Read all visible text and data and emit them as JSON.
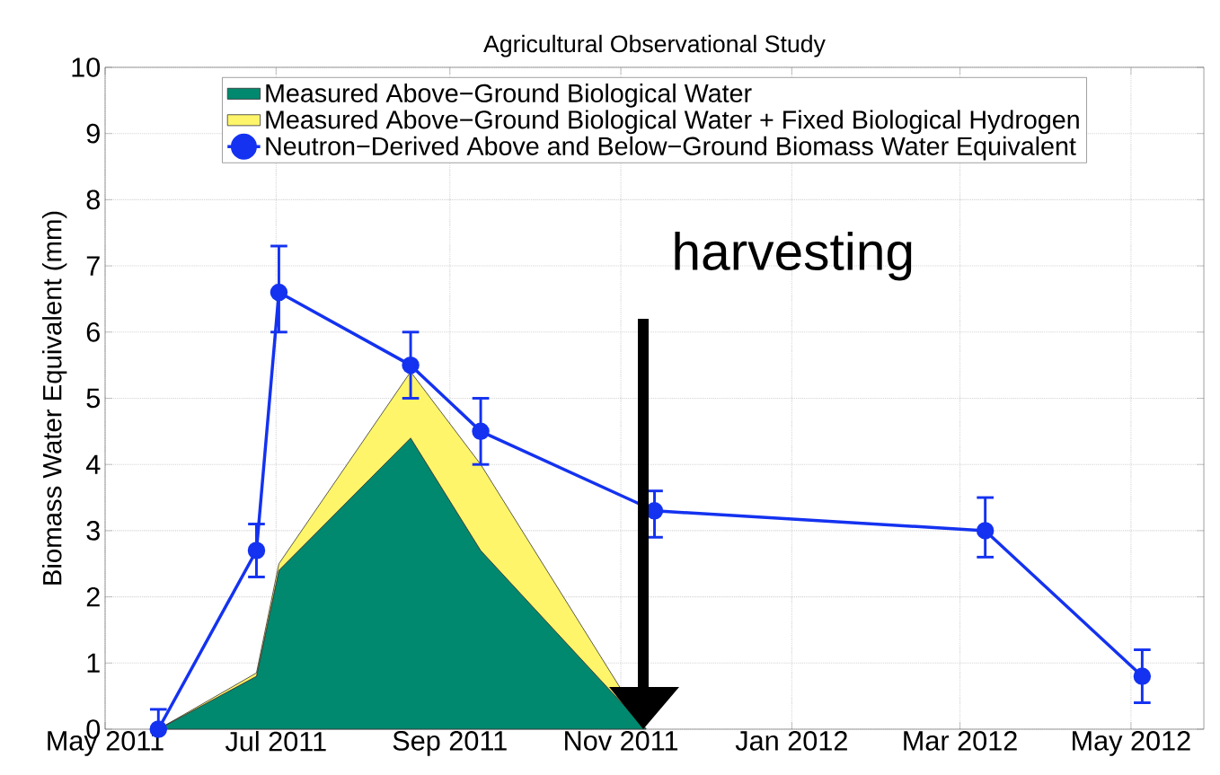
{
  "chart_data": {
    "type": "line",
    "title": "Agricultural Observational Study",
    "ylabel": "Biomass Water Equivalent (mm)",
    "xlim": [
      "2011-05-01",
      "2012-05-27"
    ],
    "xticks": [
      {
        "value": "2011-05-01",
        "label": "May 2011"
      },
      {
        "value": "2011-07-01",
        "label": "Jul 2011"
      },
      {
        "value": "2011-09-01",
        "label": "Sep 2011"
      },
      {
        "value": "2011-11-01",
        "label": "Nov 2011"
      },
      {
        "value": "2012-01-01",
        "label": "Jan 2012"
      },
      {
        "value": "2012-03-01",
        "label": "Mar 2012"
      },
      {
        "value": "2012-05-01",
        "label": "May 2012"
      }
    ],
    "ylim": [
      0,
      10
    ],
    "yticks": [
      0,
      1,
      2,
      3,
      4,
      5,
      6,
      7,
      8,
      9,
      10
    ],
    "grid": true,
    "legend": "top",
    "stacked": true,
    "series": [
      {
        "name": "Measured Above−Ground Biological Water",
        "type": "area",
        "color": "#00896f",
        "x": [
          "2011-05-20",
          "2011-06-24",
          "2011-07-02",
          "2011-08-18",
          "2011-09-12",
          "2011-11-10"
        ],
        "values": [
          0,
          0.8,
          2.4,
          4.4,
          2.7,
          0
        ]
      },
      {
        "name": "Measured Above−Ground Biological Water + Fixed Biological Hydrogen",
        "type": "area",
        "color": "#fff56a",
        "x": [
          "2011-05-20",
          "2011-06-24",
          "2011-07-02",
          "2011-08-18",
          "2011-09-12",
          "2011-11-10"
        ],
        "values": [
          0,
          0.05,
          0.1,
          1.0,
          1.3,
          0
        ]
      },
      {
        "name": "Neutron−Derived Above and Below−Ground Biomass Water Equivalent",
        "color": "#1432f0",
        "marker": "circle",
        "line_style": "solid",
        "x": [
          "2011-05-20",
          "2011-06-24",
          "2011-07-02",
          "2011-08-18",
          "2011-09-12",
          "2011-11-13",
          "2012-03-10",
          "2012-05-05"
        ],
        "values": [
          0,
          2.7,
          6.6,
          5.5,
          4.5,
          3.3,
          3.0,
          0.8
        ],
        "errors": [
          [
            0,
            0.3
          ],
          0.4,
          [
            6.0,
            7.3
          ],
          0.5,
          0.5,
          [
            2.9,
            3.6
          ],
          [
            2.6,
            3.5
          ],
          0.4
        ]
      }
    ],
    "annotations": [
      "harvesting"
    ]
  }
}
